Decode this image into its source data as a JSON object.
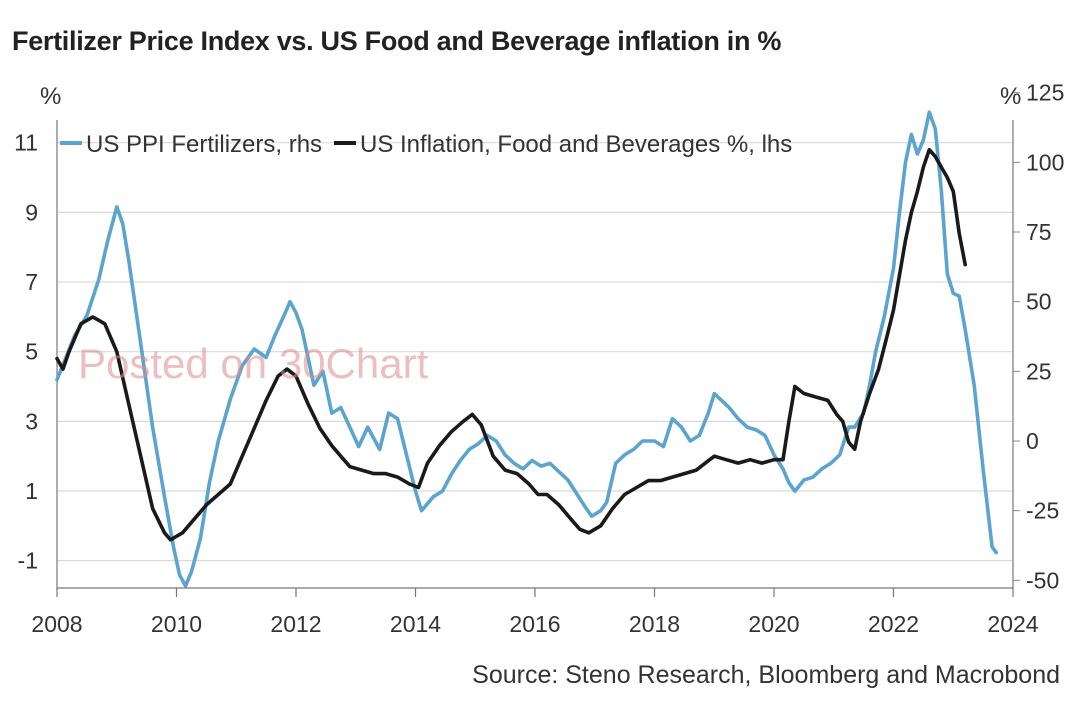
{
  "title": "Fertilizer Price Index vs. US Food and Beverage inflation in %",
  "source": "Source: Steno Research, Bloomberg and Macrobond",
  "watermark": "Posted on 30Chart",
  "chart_data": {
    "type": "line",
    "title": "Fertilizer Price Index vs. US Food and Beverage inflation in %",
    "left_axis": {
      "unit": "%",
      "range": [
        -1.6,
        11.8
      ],
      "ticks": [
        -1,
        1,
        3,
        5,
        7,
        9,
        11
      ]
    },
    "right_axis": {
      "unit": "%",
      "range": [
        -55,
        130
      ],
      "ticks": [
        -50,
        -25,
        0,
        25,
        50,
        75,
        100,
        125
      ]
    },
    "x_axis": {
      "range": [
        2008,
        2024
      ],
      "ticks": [
        2008,
        2010,
        2012,
        2014,
        2016,
        2018,
        2020,
        2022,
        2024
      ]
    },
    "grid": "horizontal",
    "legend_position": "top-left",
    "series": [
      {
        "name": "US PPI Fertilizers, rhs",
        "axis": "right",
        "color": "#5ba4cf",
        "points": [
          [
            2008.0,
            22
          ],
          [
            2008.15,
            30
          ],
          [
            2008.3,
            38
          ],
          [
            2008.5,
            45
          ],
          [
            2008.7,
            58
          ],
          [
            2008.85,
            72
          ],
          [
            2009.0,
            84
          ],
          [
            2009.1,
            78
          ],
          [
            2009.2,
            65
          ],
          [
            2009.4,
            35
          ],
          [
            2009.6,
            5
          ],
          [
            2009.8,
            -20
          ],
          [
            2009.95,
            -38
          ],
          [
            2010.05,
            -48
          ],
          [
            2010.15,
            -52
          ],
          [
            2010.25,
            -47
          ],
          [
            2010.4,
            -35
          ],
          [
            2010.55,
            -15
          ],
          [
            2010.7,
            0
          ],
          [
            2010.9,
            15
          ],
          [
            2011.1,
            27
          ],
          [
            2011.3,
            33
          ],
          [
            2011.5,
            30
          ],
          [
            2011.65,
            38
          ],
          [
            2011.8,
            45
          ],
          [
            2011.9,
            50
          ],
          [
            2012.0,
            46
          ],
          [
            2012.1,
            40
          ],
          [
            2012.2,
            30
          ],
          [
            2012.3,
            20
          ],
          [
            2012.45,
            25
          ],
          [
            2012.6,
            10
          ],
          [
            2012.75,
            12
          ],
          [
            2012.9,
            5
          ],
          [
            2013.05,
            -2
          ],
          [
            2013.2,
            5
          ],
          [
            2013.4,
            -3
          ],
          [
            2013.55,
            10
          ],
          [
            2013.7,
            8
          ],
          [
            2013.85,
            -5
          ],
          [
            2014.0,
            -18
          ],
          [
            2014.1,
            -25
          ],
          [
            2014.3,
            -20
          ],
          [
            2014.45,
            -18
          ],
          [
            2014.6,
            -12
          ],
          [
            2014.75,
            -7
          ],
          [
            2014.9,
            -3
          ],
          [
            2015.05,
            -1
          ],
          [
            2015.2,
            2
          ],
          [
            2015.35,
            0
          ],
          [
            2015.5,
            -5
          ],
          [
            2015.65,
            -8
          ],
          [
            2015.8,
            -10
          ],
          [
            2015.95,
            -7
          ],
          [
            2016.1,
            -9
          ],
          [
            2016.25,
            -8
          ],
          [
            2016.4,
            -11
          ],
          [
            2016.55,
            -14
          ],
          [
            2016.7,
            -19
          ],
          [
            2016.85,
            -24
          ],
          [
            2016.95,
            -27
          ],
          [
            2017.1,
            -25
          ],
          [
            2017.2,
            -22
          ],
          [
            2017.35,
            -8
          ],
          [
            2017.5,
            -5
          ],
          [
            2017.65,
            -3
          ],
          [
            2017.8,
            0
          ],
          [
            2018.0,
            0
          ],
          [
            2018.15,
            -2
          ],
          [
            2018.3,
            8
          ],
          [
            2018.45,
            5
          ],
          [
            2018.6,
            0
          ],
          [
            2018.75,
            2
          ],
          [
            2018.9,
            10
          ],
          [
            2019.0,
            17
          ],
          [
            2019.1,
            15
          ],
          [
            2019.25,
            12
          ],
          [
            2019.4,
            8
          ],
          [
            2019.55,
            5
          ],
          [
            2019.7,
            4
          ],
          [
            2019.85,
            2
          ],
          [
            2020.0,
            -5
          ],
          [
            2020.15,
            -10
          ],
          [
            2020.25,
            -15
          ],
          [
            2020.35,
            -18
          ],
          [
            2020.5,
            -14
          ],
          [
            2020.65,
            -13
          ],
          [
            2020.8,
            -10
          ],
          [
            2020.95,
            -8
          ],
          [
            2021.1,
            -5
          ],
          [
            2021.25,
            5
          ],
          [
            2021.35,
            5
          ],
          [
            2021.5,
            10
          ],
          [
            2021.6,
            20
          ],
          [
            2021.7,
            32
          ],
          [
            2021.85,
            45
          ],
          [
            2022.0,
            62
          ],
          [
            2022.1,
            82
          ],
          [
            2022.2,
            100
          ],
          [
            2022.3,
            110
          ],
          [
            2022.4,
            103
          ],
          [
            2022.5,
            108
          ],
          [
            2022.6,
            118
          ],
          [
            2022.7,
            112
          ],
          [
            2022.8,
            90
          ],
          [
            2022.9,
            60
          ],
          [
            2023.0,
            53
          ],
          [
            2023.1,
            52
          ],
          [
            2023.2,
            40
          ],
          [
            2023.35,
            20
          ],
          [
            2023.5,
            -10
          ],
          [
            2023.65,
            -38
          ],
          [
            2023.72,
            -40
          ]
        ]
      },
      {
        "name": "US Inflation, Food and Beverages %, lhs",
        "axis": "left",
        "color": "#1a1a1a",
        "points": [
          [
            2008.0,
            4.8
          ],
          [
            2008.1,
            4.5
          ],
          [
            2008.2,
            5.0
          ],
          [
            2008.4,
            5.8
          ],
          [
            2008.6,
            6.0
          ],
          [
            2008.8,
            5.8
          ],
          [
            2009.0,
            5.0
          ],
          [
            2009.2,
            3.5
          ],
          [
            2009.4,
            2.0
          ],
          [
            2009.6,
            0.5
          ],
          [
            2009.8,
            -0.2
          ],
          [
            2009.9,
            -0.4
          ],
          [
            2010.1,
            -0.2
          ],
          [
            2010.3,
            0.2
          ],
          [
            2010.5,
            0.6
          ],
          [
            2010.7,
            0.9
          ],
          [
            2010.9,
            1.2
          ],
          [
            2011.1,
            2.0
          ],
          [
            2011.3,
            2.8
          ],
          [
            2011.5,
            3.6
          ],
          [
            2011.7,
            4.3
          ],
          [
            2011.85,
            4.5
          ],
          [
            2012.0,
            4.3
          ],
          [
            2012.2,
            3.5
          ],
          [
            2012.4,
            2.8
          ],
          [
            2012.6,
            2.3
          ],
          [
            2012.75,
            2.0
          ],
          [
            2012.9,
            1.7
          ],
          [
            2013.1,
            1.6
          ],
          [
            2013.3,
            1.5
          ],
          [
            2013.5,
            1.5
          ],
          [
            2013.7,
            1.4
          ],
          [
            2013.9,
            1.2
          ],
          [
            2014.05,
            1.1
          ],
          [
            2014.2,
            1.8
          ],
          [
            2014.4,
            2.3
          ],
          [
            2014.6,
            2.7
          ],
          [
            2014.8,
            3.0
          ],
          [
            2014.95,
            3.2
          ],
          [
            2015.1,
            2.9
          ],
          [
            2015.3,
            2.0
          ],
          [
            2015.5,
            1.6
          ],
          [
            2015.7,
            1.5
          ],
          [
            2015.9,
            1.2
          ],
          [
            2016.05,
            0.9
          ],
          [
            2016.2,
            0.9
          ],
          [
            2016.4,
            0.6
          ],
          [
            2016.6,
            0.2
          ],
          [
            2016.75,
            -0.1
          ],
          [
            2016.9,
            -0.2
          ],
          [
            2017.1,
            0.0
          ],
          [
            2017.3,
            0.5
          ],
          [
            2017.5,
            0.9
          ],
          [
            2017.7,
            1.1
          ],
          [
            2017.9,
            1.3
          ],
          [
            2018.1,
            1.3
          ],
          [
            2018.3,
            1.4
          ],
          [
            2018.5,
            1.5
          ],
          [
            2018.7,
            1.6
          ],
          [
            2018.85,
            1.8
          ],
          [
            2019.0,
            2.0
          ],
          [
            2019.2,
            1.9
          ],
          [
            2019.4,
            1.8
          ],
          [
            2019.6,
            1.9
          ],
          [
            2019.8,
            1.8
          ],
          [
            2020.0,
            1.9
          ],
          [
            2020.15,
            1.9
          ],
          [
            2020.25,
            3.0
          ],
          [
            2020.35,
            4.0
          ],
          [
            2020.5,
            3.8
          ],
          [
            2020.7,
            3.7
          ],
          [
            2020.9,
            3.6
          ],
          [
            2021.05,
            3.2
          ],
          [
            2021.15,
            3.0
          ],
          [
            2021.25,
            2.4
          ],
          [
            2021.35,
            2.2
          ],
          [
            2021.45,
            3.0
          ],
          [
            2021.6,
            3.8
          ],
          [
            2021.75,
            4.5
          ],
          [
            2021.9,
            5.5
          ],
          [
            2022.0,
            6.2
          ],
          [
            2022.1,
            7.2
          ],
          [
            2022.2,
            8.2
          ],
          [
            2022.3,
            9.0
          ],
          [
            2022.4,
            9.6
          ],
          [
            2022.5,
            10.3
          ],
          [
            2022.6,
            10.8
          ],
          [
            2022.7,
            10.6
          ],
          [
            2022.8,
            10.3
          ],
          [
            2022.9,
            10.0
          ],
          [
            2023.0,
            9.6
          ],
          [
            2023.1,
            8.4
          ],
          [
            2023.2,
            7.5
          ]
        ]
      }
    ]
  }
}
